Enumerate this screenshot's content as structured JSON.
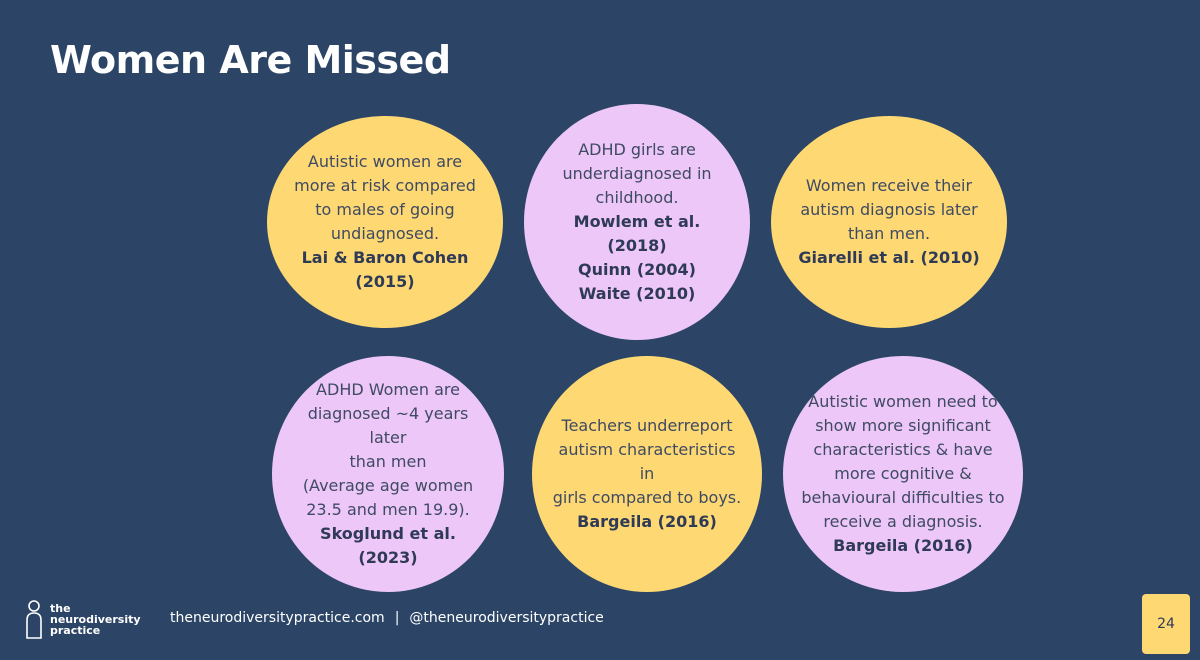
{
  "slide": {
    "title": "Women Are Missed",
    "page_number": "24"
  },
  "colors": {
    "background": "#2c4566",
    "yellow": "#fdd873",
    "pink": "#edc7f7",
    "text": "#3f4a63"
  },
  "circles": [
    {
      "color": "yellow",
      "lines": [
        "Autistic women are",
        "more at risk compared",
        "to males of going",
        "undiagnosed."
      ],
      "citations": [
        "Lai & Baron Cohen",
        "(2015)"
      ]
    },
    {
      "color": "pink",
      "lines": [
        "ADHD girls are",
        "underdiagnosed in",
        "childhood."
      ],
      "citations": [
        "Mowlem et al. (2018)",
        "Quinn (2004)",
        "Waite (2010)"
      ]
    },
    {
      "color": "yellow",
      "lines": [
        "Women receive their",
        "autism diagnosis later",
        "than men."
      ],
      "citations": [
        "Giarelli et al. (2010)"
      ]
    },
    {
      "color": "pink",
      "lines": [
        "ADHD Women are",
        "diagnosed ~4 years later",
        "than men",
        "(Average age women",
        "23.5 and men 19.9)."
      ],
      "citations": [
        "Skoglund et al. (2023)"
      ]
    },
    {
      "color": "yellow",
      "lines": [
        "Teachers underreport",
        "autism characteristics in",
        "girls compared to boys."
      ],
      "citations": [
        "Bargeila (2016)"
      ]
    },
    {
      "color": "pink",
      "lines": [
        "Autistic women need to",
        "show more significant",
        "characteristics & have",
        "more cognitive &",
        "behavioural difficulties to",
        "receive a diagnosis."
      ],
      "citations": [
        "Bargeila (2016)"
      ]
    }
  ],
  "footer": {
    "logo_lines": [
      "the",
      "neurodiversity",
      "practice"
    ],
    "website": "theneurodiversitypractice.com",
    "separator": "|",
    "handle": "@theneurodiversitypractice",
    "logo_icon": "person-outline-icon"
  }
}
